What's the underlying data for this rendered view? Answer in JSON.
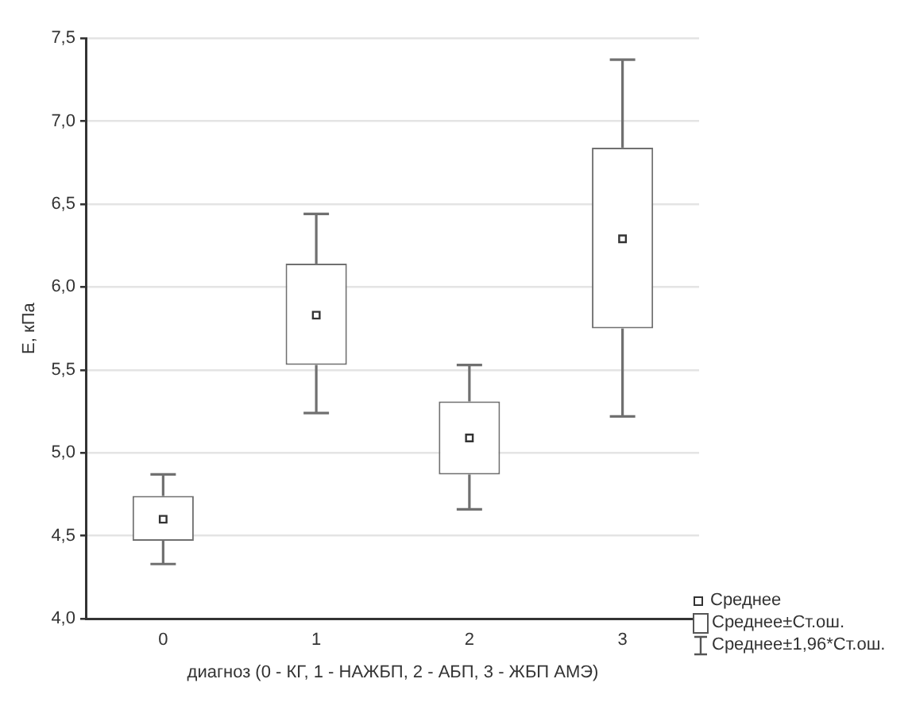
{
  "chart_data": {
    "type": "box",
    "xlabel": "диагноз (0 - КГ, 1 - НАЖБП, 2 - АБП, 3 - ЖБП АМЭ)",
    "ylabel": "E, кПа",
    "categories": [
      "0",
      "1",
      "2",
      "3"
    ],
    "boxes": [
      {
        "low": 4.33,
        "q1": 4.47,
        "median": 4.6,
        "q3": 4.74,
        "high": 4.87
      },
      {
        "low": 5.24,
        "q1": 5.53,
        "median": 5.83,
        "q3": 6.14,
        "high": 6.44
      },
      {
        "low": 4.66,
        "q1": 4.87,
        "median": 5.09,
        "q3": 5.31,
        "high": 5.53
      },
      {
        "low": 5.22,
        "q1": 5.75,
        "median": 6.29,
        "q3": 6.84,
        "high": 7.37
      }
    ],
    "ylim": [
      4,
      7.5
    ],
    "yticks": [
      {
        "value": 4,
        "label": "4,0"
      },
      {
        "value": 4.5,
        "label": "4,5"
      },
      {
        "value": 5,
        "label": "5,0"
      },
      {
        "value": 5.5,
        "label": "5,5"
      },
      {
        "value": 6,
        "label": "6,0"
      },
      {
        "value": 6.5,
        "label": "6,5"
      },
      {
        "value": 7,
        "label": "7,0"
      },
      {
        "value": 7.5,
        "label": "7,5"
      }
    ],
    "grid": "y",
    "marker": "square",
    "annotations": [
      "Среднее",
      "Среднее±Ст.ош.",
      "Среднее±1,96*Ст.ош."
    ]
  }
}
